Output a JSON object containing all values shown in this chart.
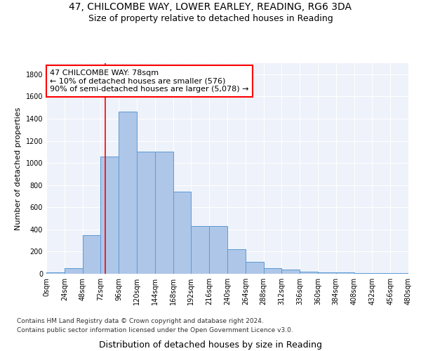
{
  "title1": "47, CHILCOMBE WAY, LOWER EARLEY, READING, RG6 3DA",
  "title2": "Size of property relative to detached houses in Reading",
  "xlabel": "Distribution of detached houses by size in Reading",
  "ylabel": "Number of detached properties",
  "bin_labels": [
    "0sqm",
    "24sqm",
    "48sqm",
    "72sqm",
    "96sqm",
    "120sqm",
    "144sqm",
    "168sqm",
    "192sqm",
    "216sqm",
    "240sqm",
    "264sqm",
    "288sqm",
    "312sqm",
    "336sqm",
    "360sqm",
    "384sqm",
    "408sqm",
    "432sqm",
    "456sqm",
    "480sqm"
  ],
  "bar_heights": [
    15,
    50,
    350,
    1060,
    1460,
    1100,
    1100,
    740,
    430,
    430,
    220,
    110,
    50,
    40,
    20,
    15,
    10,
    5,
    5,
    5,
    5
  ],
  "bar_color": "#aec6e8",
  "bar_edge_color": "#5b9bd5",
  "vline_x": 78,
  "vline_color": "red",
  "annotation_text": "47 CHILCOMBE WAY: 78sqm\n← 10% of detached houses are smaller (576)\n90% of semi-detached houses are larger (5,078) →",
  "annotation_box_color": "white",
  "annotation_box_edge": "red",
  "footnote1": "Contains HM Land Registry data © Crown copyright and database right 2024.",
  "footnote2": "Contains public sector information licensed under the Open Government Licence v3.0.",
  "ylim": [
    0,
    1900
  ],
  "xlim_min": 0,
  "xlim_max": 480,
  "bin_width": 24,
  "background_color": "#eef2fa",
  "grid_color": "white",
  "title1_fontsize": 10,
  "title2_fontsize": 9,
  "xlabel_fontsize": 9,
  "ylabel_fontsize": 8,
  "tick_fontsize": 7,
  "annot_fontsize": 8,
  "footnote_fontsize": 6.5
}
